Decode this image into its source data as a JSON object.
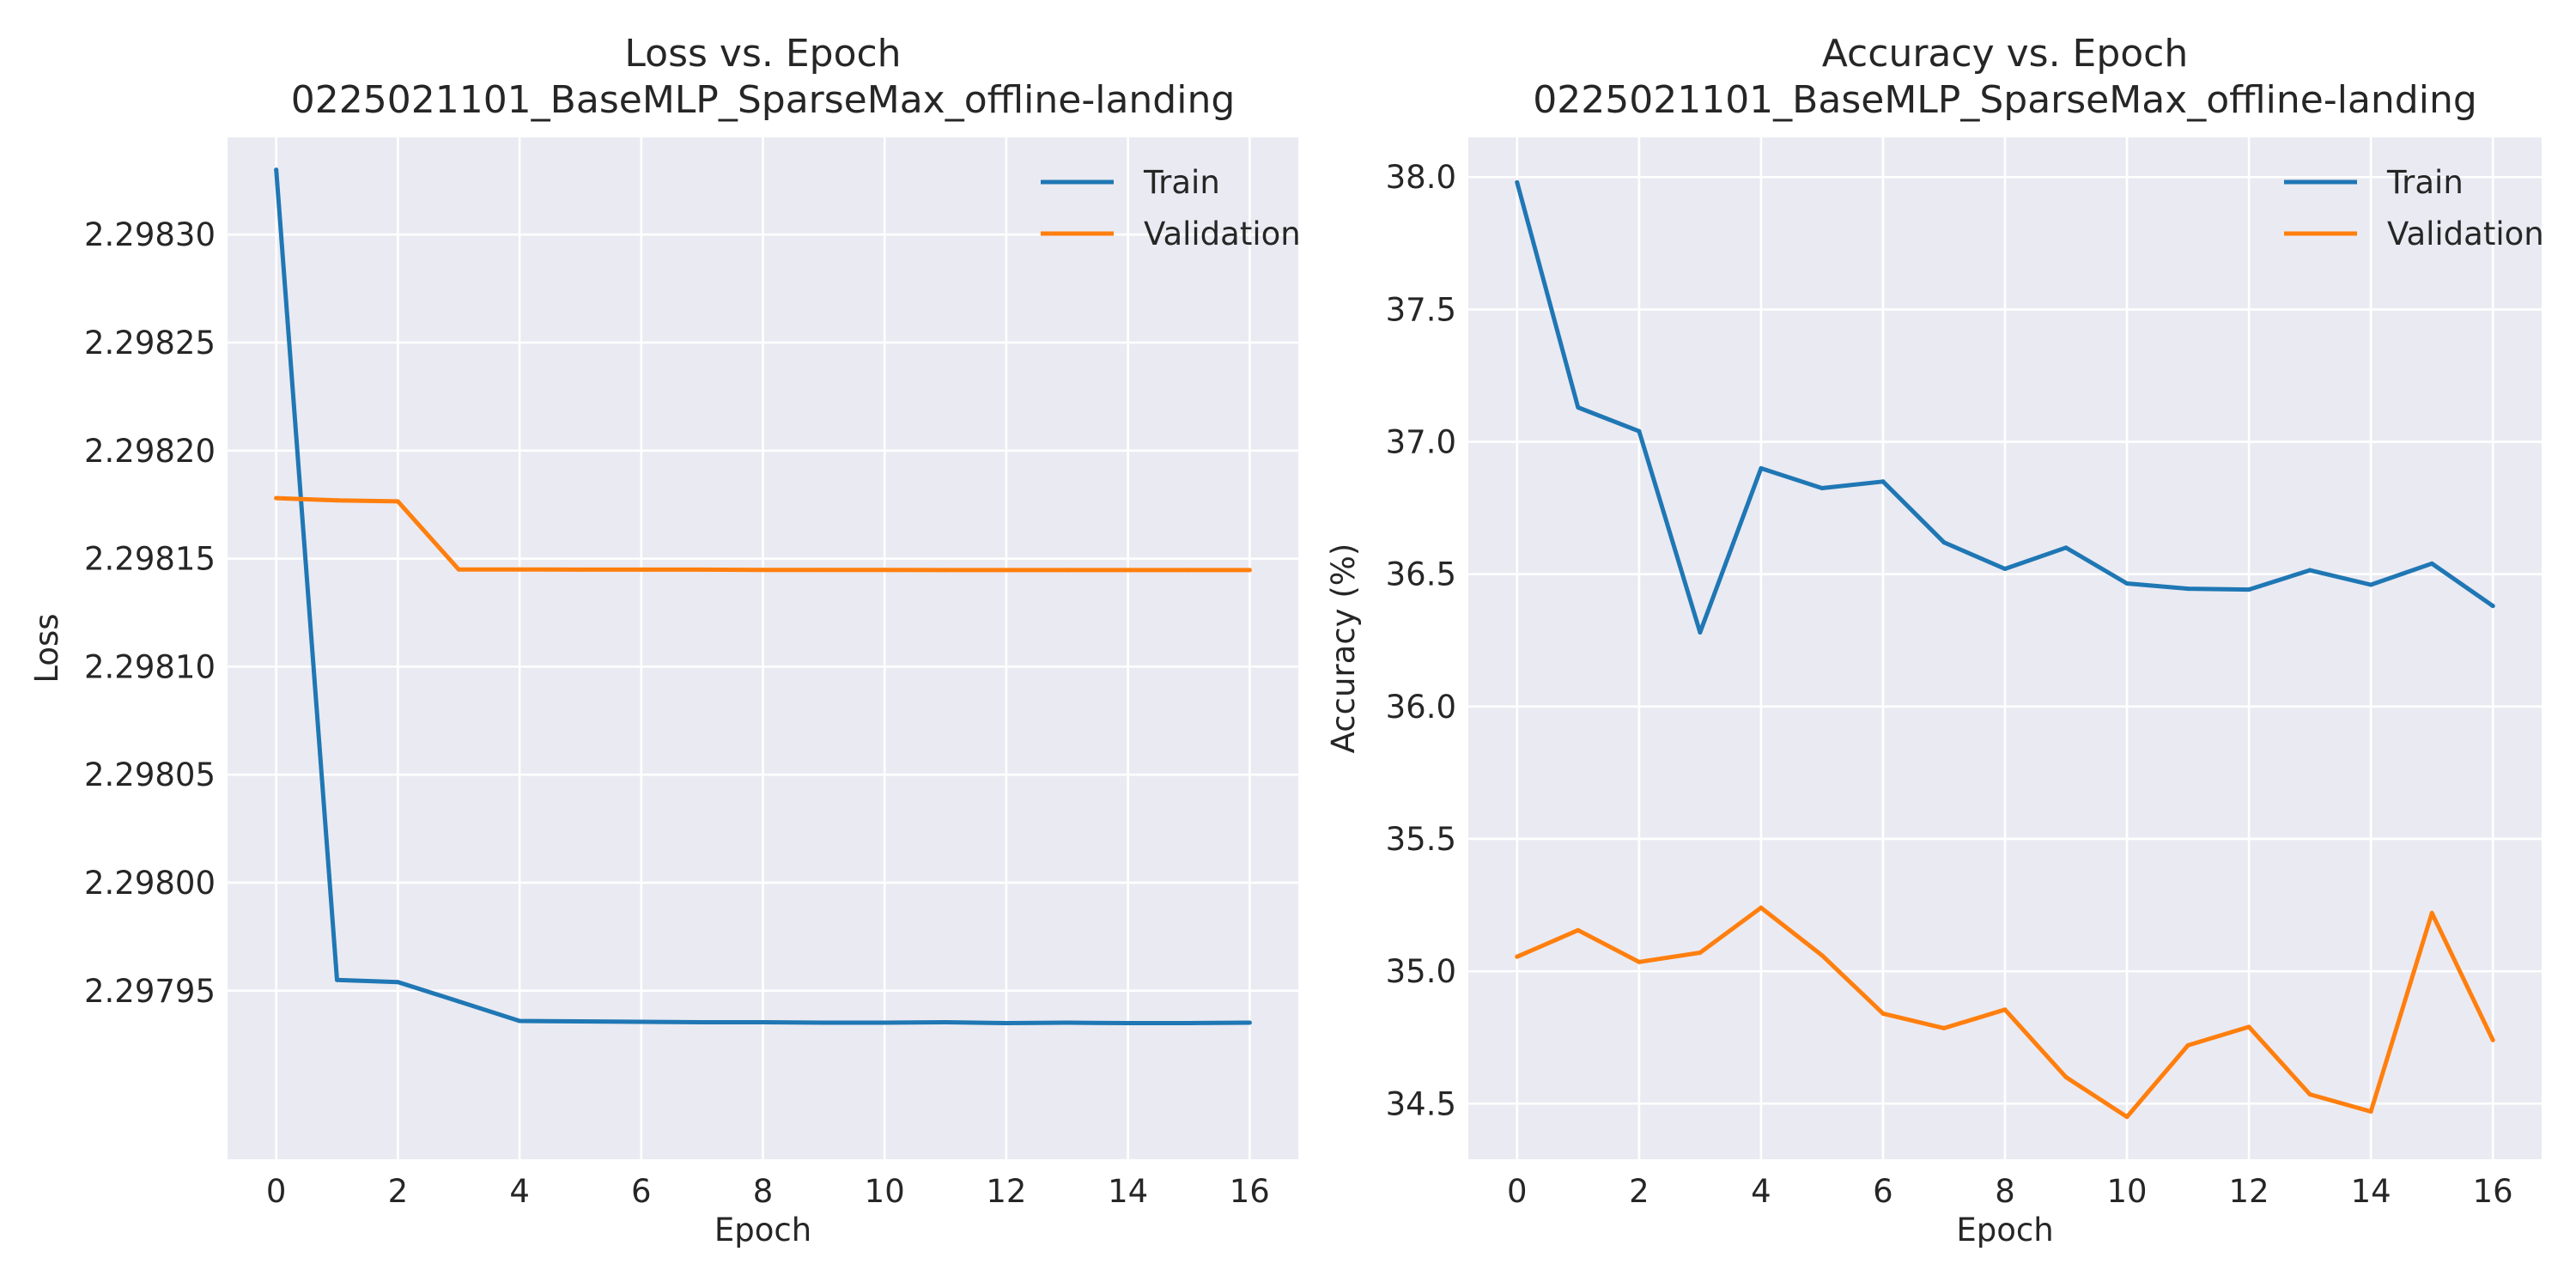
{
  "chart_data": [
    {
      "type": "line",
      "title": "Loss vs. Epoch",
      "subtitle": "0225021101_BaseMLP_SparseMax_offline-landing",
      "xlabel": "Epoch",
      "ylabel": "Loss",
      "x": [
        0,
        1,
        2,
        3,
        4,
        5,
        6,
        7,
        8,
        9,
        10,
        11,
        12,
        13,
        14,
        15,
        16
      ],
      "xlim": [
        -0.8,
        16.8
      ],
      "ylim": [
        2.297872,
        2.298345
      ],
      "xticks": [
        0,
        2,
        4,
        6,
        8,
        10,
        12,
        14,
        16
      ],
      "xtick_labels": [
        "0",
        "2",
        "4",
        "6",
        "8",
        "10",
        "12",
        "14",
        "16"
      ],
      "yticks": [
        2.29795,
        2.298,
        2.29805,
        2.2981,
        2.29815,
        2.2982,
        2.29825,
        2.2983
      ],
      "ytick_labels": [
        "2.29795",
        "2.29800",
        "2.29805",
        "2.29810",
        "2.29815",
        "2.29820",
        "2.29825",
        "2.29830"
      ],
      "grid": true,
      "legend_position": "top-right",
      "series": [
        {
          "name": "Train",
          "color": "#1f77b4",
          "values": [
            2.29833,
            2.297955,
            2.297954,
            2.297945,
            2.297936,
            2.2979358,
            2.2979356,
            2.2979354,
            2.2979354,
            2.2979352,
            2.2979352,
            2.2979354,
            2.297935,
            2.2979352,
            2.297935,
            2.297935,
            2.2979352
          ]
        },
        {
          "name": "Validation",
          "color": "#ff7f0e",
          "values": [
            2.298178,
            2.298177,
            2.2981765,
            2.298145,
            2.298145,
            2.2981449,
            2.2981449,
            2.2981449,
            2.2981448,
            2.2981448,
            2.2981448,
            2.2981447,
            2.2981447,
            2.2981447,
            2.2981447,
            2.2981447,
            2.2981447
          ]
        }
      ]
    },
    {
      "type": "line",
      "title": "Accuracy vs. Epoch",
      "subtitle": "0225021101_BaseMLP_SparseMax_offline-landing",
      "xlabel": "Epoch",
      "ylabel": "Accuracy (%)",
      "x": [
        0,
        1,
        2,
        3,
        4,
        5,
        6,
        7,
        8,
        9,
        10,
        11,
        12,
        13,
        14,
        15,
        16
      ],
      "xlim": [
        -0.8,
        16.8
      ],
      "ylim": [
        34.29,
        38.15
      ],
      "xticks": [
        0,
        2,
        4,
        6,
        8,
        10,
        12,
        14,
        16
      ],
      "xtick_labels": [
        "0",
        "2",
        "4",
        "6",
        "8",
        "10",
        "12",
        "14",
        "16"
      ],
      "yticks": [
        34.5,
        35.0,
        35.5,
        36.0,
        36.5,
        37.0,
        37.5,
        38.0
      ],
      "ytick_labels": [
        "34.5",
        "35.0",
        "35.5",
        "36.0",
        "36.5",
        "37.0",
        "37.5",
        "38.0"
      ],
      "grid": true,
      "legend_position": "top-right",
      "series": [
        {
          "name": "Train",
          "color": "#1f77b4",
          "values": [
            37.98,
            37.13,
            37.04,
            36.28,
            36.9,
            36.825,
            36.85,
            36.62,
            36.52,
            36.6,
            36.465,
            36.445,
            36.442,
            36.515,
            36.46,
            36.54,
            36.38
          ]
        },
        {
          "name": "Validation",
          "color": "#ff7f0e",
          "values": [
            35.055,
            35.155,
            35.035,
            35.07,
            35.24,
            35.06,
            34.84,
            34.785,
            34.855,
            34.6,
            34.45,
            34.72,
            34.79,
            34.535,
            34.47,
            35.22,
            34.74
          ]
        }
      ]
    }
  ]
}
